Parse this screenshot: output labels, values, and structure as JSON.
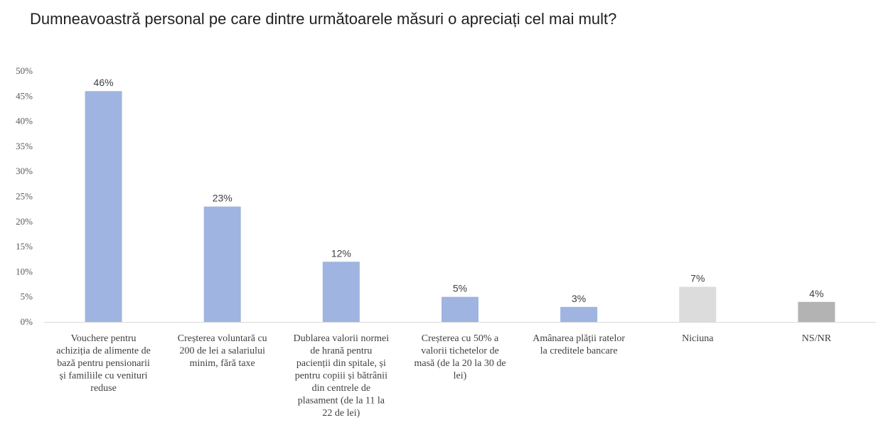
{
  "chart_data": {
    "type": "bar",
    "title": "Dumneavoastră personal pe care dintre următoarele măsuri o apreciați cel mai mult?",
    "ylim": [
      0,
      50
    ],
    "yticks": [
      "0%",
      "5%",
      "10%",
      "15%",
      "20%",
      "25%",
      "30%",
      "35%",
      "40%",
      "45%",
      "50%"
    ],
    "grid": false,
    "categories": [
      "Vouchere pentru achiziția de alimente de bază pentru pensionarii și familiile cu venituri reduse",
      "Creșterea voluntară cu 200 de lei a salariului minim, fără taxe",
      "Dublarea valorii normei de hrană pentru pacienții din spitale, și pentru copiii și bătrânii din centrele de plasament (de la 11 la 22 de lei)",
      "Creșterea cu 50% a valorii tichetelor de masă (de la 20 la 30 de lei)",
      "Amânarea plății ratelor la creditele bancare",
      "Niciuna",
      "NS/NR"
    ],
    "category_lines": [
      [
        "Vouchere pentru",
        "achiziția de alimente de",
        "bază pentru pensionarii",
        "și familiile cu venituri",
        "reduse"
      ],
      [
        "Creșterea voluntară cu",
        "200 de lei a salariului",
        "minim, fără taxe"
      ],
      [
        "Dublarea valorii normei",
        "de hrană pentru",
        "pacienții din spitale, și",
        "pentru copiii și bătrânii",
        "din centrele de",
        "plasament (de la 11 la",
        "22 de lei)"
      ],
      [
        "Creșterea cu 50% a",
        "valorii tichetelor de",
        "masă (de la 20 la 30 de",
        "lei)"
      ],
      [
        "Amânarea plății ratelor",
        "la creditele bancare"
      ],
      [
        "Niciuna"
      ],
      [
        "NS/NR"
      ]
    ],
    "values": [
      46,
      23,
      12,
      5,
      3,
      7,
      4
    ],
    "value_labels": [
      "46%",
      "23%",
      "12%",
      "5%",
      "3%",
      "7%",
      "4%"
    ],
    "colors": [
      "#9fb4e0",
      "#9fb4e0",
      "#9fb4e0",
      "#9fb4e0",
      "#9fb4e0",
      "#dcdcdc",
      "#b3b3b3"
    ]
  }
}
